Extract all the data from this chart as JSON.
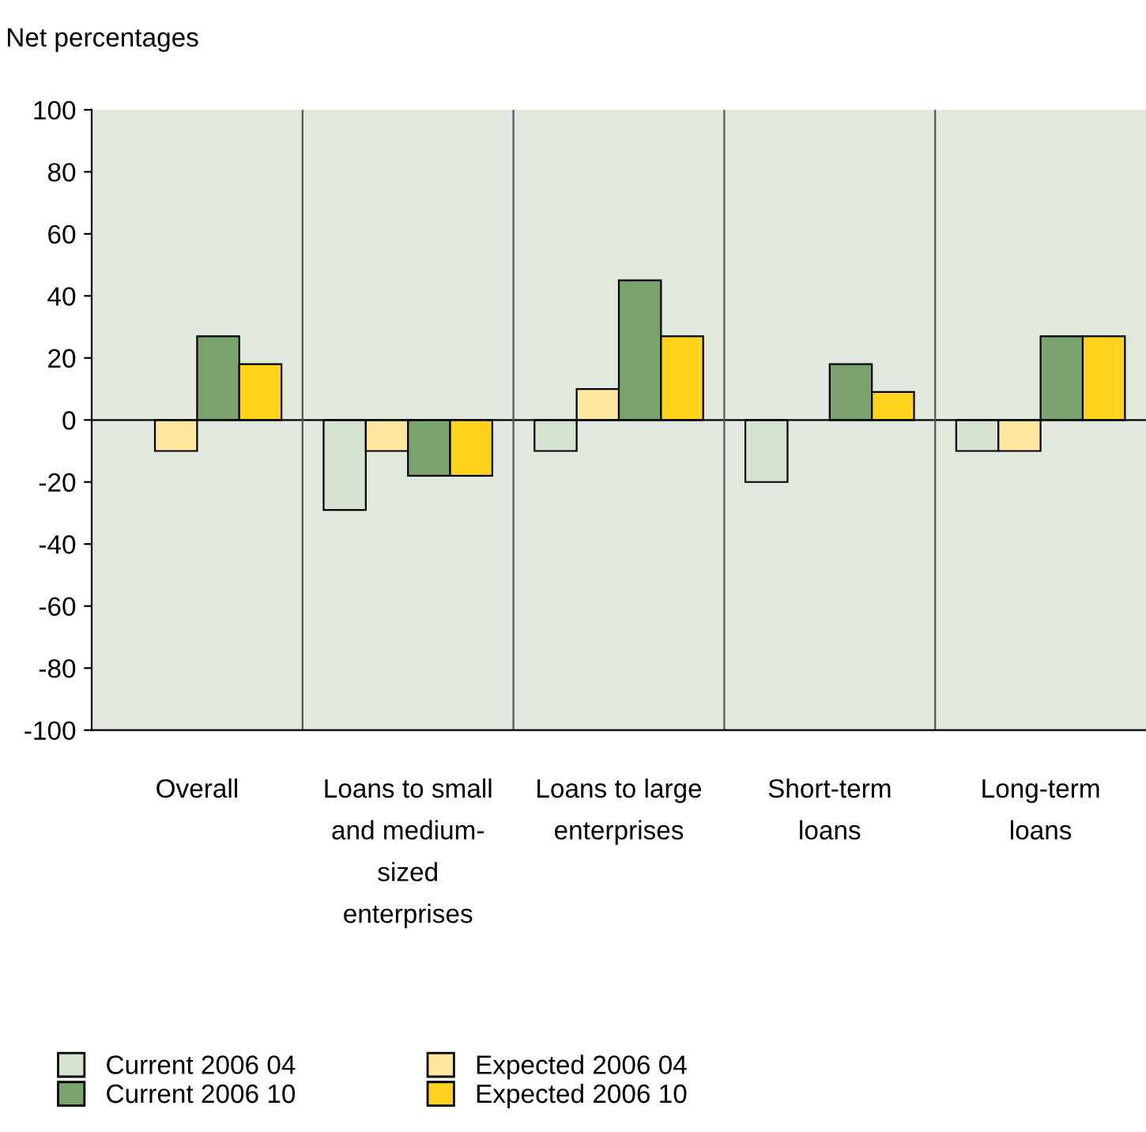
{
  "chart_data": {
    "type": "bar",
    "ylabel": "Net percentages",
    "categories": [
      "Overall",
      "Loans to small\nand medium-\nsized\nenterprises",
      "Loans to large\nenterprises",
      "Short-term\nloans",
      "Long-term\nloans"
    ],
    "series": [
      {
        "name": "Current 2006 04",
        "color": "#d3e3cd",
        "values": [
          null,
          -29,
          -10,
          -20,
          -10
        ]
      },
      {
        "name": "Expected 2006 04",
        "color": "#ffe7a0",
        "values": [
          -10,
          -10,
          10,
          null,
          -10
        ]
      },
      {
        "name": "Current 2006 10",
        "color": "#7aa26c",
        "values": [
          27,
          -18,
          45,
          18,
          27
        ]
      },
      {
        "name": "Expected 2006 10",
        "color": "#ffd21c",
        "values": [
          18,
          -18,
          27,
          9,
          27
        ]
      }
    ],
    "ylim": [
      -100,
      100
    ],
    "yticks": [
      -100,
      -80,
      -60,
      -40,
      -20,
      0,
      20,
      40,
      60,
      80,
      100
    ],
    "grid": "x",
    "legend": "bottom"
  }
}
